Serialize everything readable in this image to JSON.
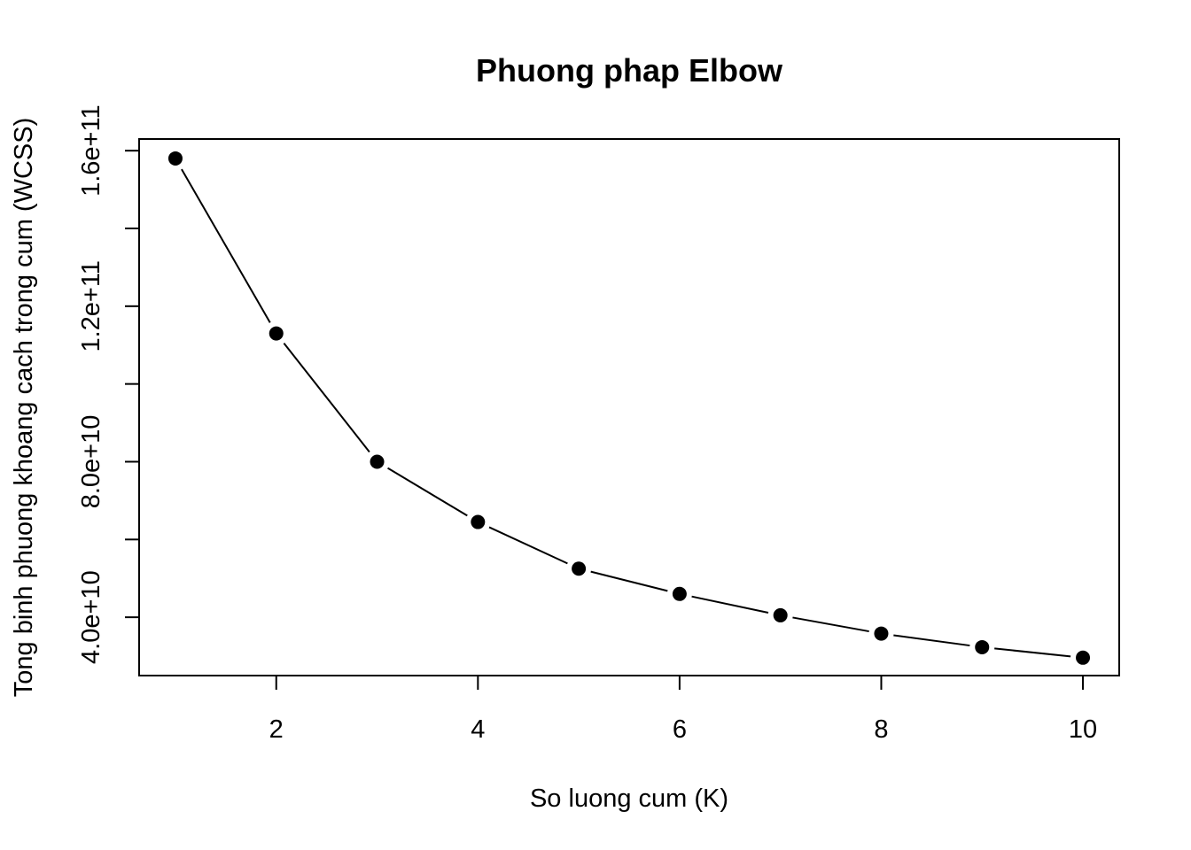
{
  "chart_data": {
    "type": "line",
    "title": "Phuong phap Elbow",
    "xlabel": "So luong cum (K)",
    "ylabel": "Tong binh phuong khoang cach trong cum (WCSS)",
    "x": [
      1,
      2,
      3,
      4,
      5,
      6,
      7,
      8,
      9,
      10
    ],
    "series": [
      {
        "values": [
          158000000000,
          113000000000,
          80000000000,
          64500000000,
          52500000000,
          46000000000,
          40500000000,
          35800000000,
          32300000000,
          29600000000
        ]
      }
    ],
    "xlim": [
      0.64,
      10.36
    ],
    "ylim": [
      25000000000,
      163000000000
    ],
    "xticks": [
      {
        "value": 2,
        "label": "2"
      },
      {
        "value": 4,
        "label": "4"
      },
      {
        "value": 6,
        "label": "6"
      },
      {
        "value": 8,
        "label": "8"
      },
      {
        "value": 10,
        "label": "10"
      }
    ],
    "yticks": [
      {
        "value": 40000000000,
        "label": "4.0e+10"
      },
      {
        "value": 60000000000,
        "label": ""
      },
      {
        "value": 80000000000,
        "label": "8.0e+10"
      },
      {
        "value": 100000000000,
        "label": ""
      },
      {
        "value": 120000000000,
        "label": "1.2e+11"
      },
      {
        "value": 140000000000,
        "label": ""
      },
      {
        "value": 160000000000,
        "label": "1.6e+11"
      }
    ],
    "grid": false,
    "line_style": "b",
    "marker": "filled-circle",
    "colors": {
      "line": "#000000",
      "marker": "#000000",
      "background": "#ffffff"
    }
  }
}
